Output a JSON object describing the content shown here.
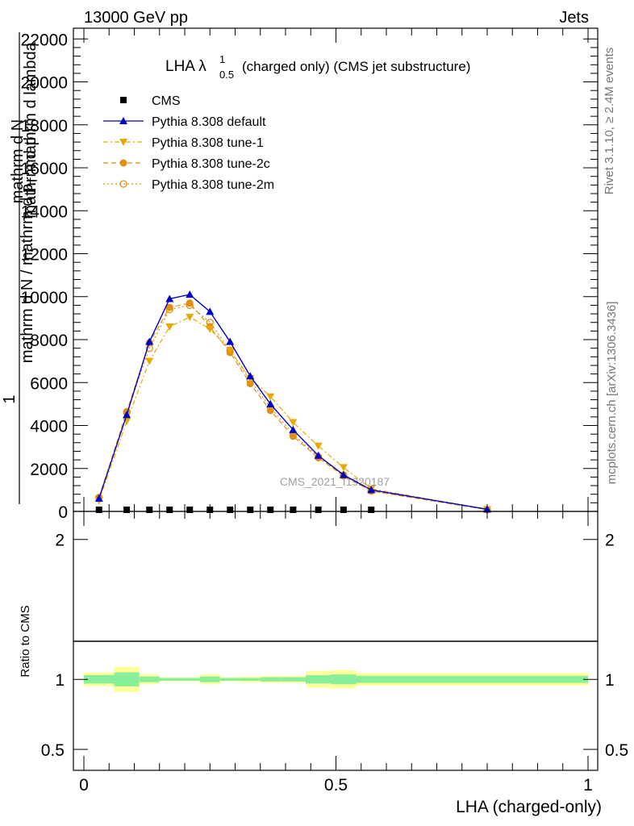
{
  "header": {
    "left": "13000 GeV pp",
    "right": "Jets"
  },
  "side_labels": {
    "rivet": "Rivet 3.1.10, ≥ 2.4M events",
    "mcplots": "mcplots.cern.ch [arXiv:1306.3436]"
  },
  "watermark": "CMS_2021_I1920187",
  "chart_data": {
    "type": "line",
    "title": "LHA λ",
    "title_sup": "1",
    "title_sub": "0.5",
    "title_suffix": "(charged only) (CMS jet substructure)",
    "ylabel_numerator": "1",
    "ylabel_frac_num": "mathrm d N",
    "ylabel_frac_den_a": "mathrm d p",
    "ylabel_frac_den_sub": "T",
    "ylabel_frac_den_b": "mathrm d lambda",
    "ylabel_denominator": "mathrm d N / mathrm d p",
    "ylabel_denominator_sub": "T",
    "ylabel_stack": [
      "mathrm d N",
      "mathrm d p",
      "mathrm d lambda"
    ],
    "xlabel": "LHA (charged-only)",
    "ylim": [
      0,
      22500
    ],
    "xlim": [
      0,
      1
    ],
    "yticks": [
      0,
      2000,
      4000,
      6000,
      8000,
      10000,
      12000,
      14000,
      16000,
      18000,
      20000,
      22000
    ],
    "ytick_labels": [
      "0",
      "2000",
      "4000",
      "6000",
      "8000",
      "10000",
      "12000",
      "14000",
      "16000",
      "18000",
      "20000",
      "22000"
    ],
    "xticks": [
      0,
      0.5,
      1
    ],
    "xtick_labels": [
      "0",
      "0.5",
      "1"
    ],
    "legend": [
      "CMS",
      "Pythia 8.308 default",
      "Pythia 8.308 tune-1",
      "Pythia 8.308 tune-2c",
      "Pythia 8.308 tune-2m"
    ],
    "x": [
      0.03,
      0.085,
      0.13,
      0.17,
      0.21,
      0.25,
      0.29,
      0.33,
      0.37,
      0.415,
      0.465,
      0.515,
      0.57,
      0.8
    ],
    "series": [
      {
        "name": "CMS",
        "color": "#000000",
        "marker": "square",
        "values": [
          25,
          25,
          25,
          25,
          25,
          25,
          25,
          25,
          25,
          25,
          25,
          25,
          25,
          null
        ]
      },
      {
        "name": "Pythia 8.308 default",
        "color": "#0000cc",
        "marker": "triangle-up",
        "dash": "solid",
        "values": [
          600,
          4500,
          7900,
          9900,
          10100,
          9300,
          7900,
          6300,
          5000,
          3800,
          2600,
          1700,
          1000,
          100
        ]
      },
      {
        "name": "Pythia 8.308 tune-1",
        "color": "#e8a800",
        "marker": "triangle-down",
        "dash": "dashdot",
        "values": [
          500,
          4200,
          7000,
          8600,
          9050,
          8500,
          7500,
          6200,
          5350,
          4150,
          3050,
          2050,
          1050,
          100
        ]
      },
      {
        "name": "Pythia 8.308 tune-2c",
        "color": "#e09010",
        "marker": "circle",
        "dash": "dash",
        "values": [
          650,
          4650,
          7850,
          9500,
          9700,
          8600,
          7400,
          5950,
          4700,
          3500,
          2500,
          1650,
          950,
          80
        ]
      },
      {
        "name": "Pythia 8.308 tune-2m",
        "color": "#e09010",
        "marker": "circle-open",
        "dash": "dot",
        "values": [
          650,
          4600,
          7600,
          9400,
          9600,
          8800,
          7500,
          6100,
          4850,
          3600,
          2550,
          1700,
          950,
          80
        ]
      }
    ],
    "ratio": {
      "ylabel": "Ratio to CMS",
      "ylim": [
        0.35,
        2.2
      ],
      "yticks": [
        0.5,
        1,
        2
      ],
      "ytick_labels": [
        "0.5",
        "1",
        "2"
      ],
      "bins": [
        0,
        0.06,
        0.11,
        0.15,
        0.19,
        0.23,
        0.27,
        0.31,
        0.35,
        0.39,
        0.44,
        0.49,
        0.54,
        0.6,
        1.0
      ],
      "band_green_half": [
        0.03,
        0.05,
        0.02,
        0.01,
        0.01,
        0.02,
        0.01,
        0.01,
        0.015,
        0.015,
        0.03,
        0.035,
        0.025,
        0.025
      ],
      "band_yellow_half": [
        0.05,
        0.09,
        0.035,
        0.015,
        0.015,
        0.035,
        0.015,
        0.02,
        0.025,
        0.025,
        0.06,
        0.065,
        0.045,
        0.045
      ]
    }
  }
}
